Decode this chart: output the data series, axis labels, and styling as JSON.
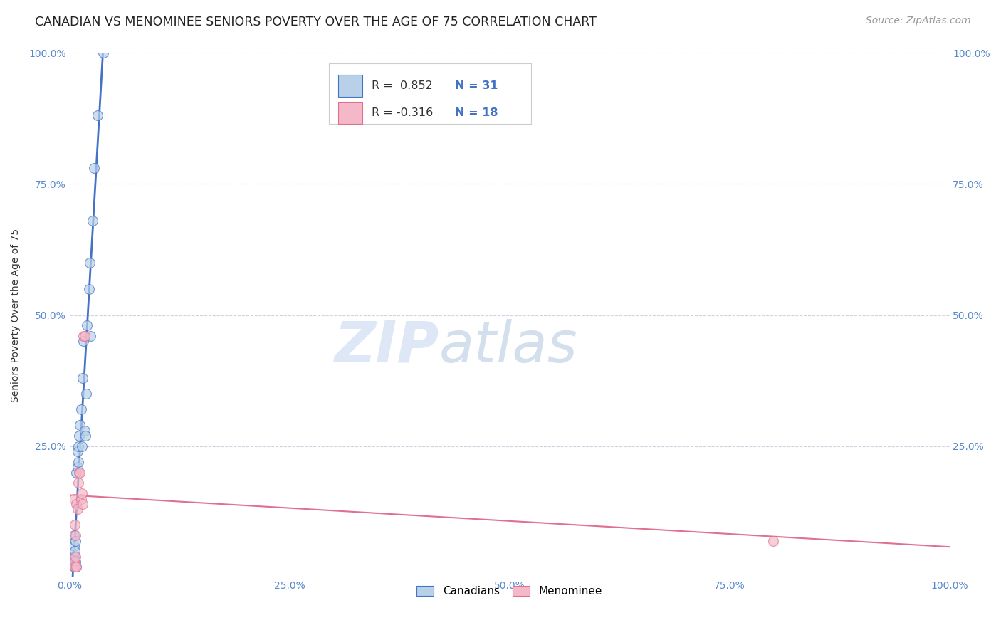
{
  "title": "CANADIAN VS MENOMINEE SENIORS POVERTY OVER THE AGE OF 75 CORRELATION CHART",
  "source": "Source: ZipAtlas.com",
  "ylabel": "Seniors Poverty Over the Age of 75",
  "watermark_zip": "ZIP",
  "watermark_atlas": "atlas",
  "canadians_x": [
    0.005,
    0.005,
    0.005,
    0.005,
    0.006,
    0.006,
    0.007,
    0.007,
    0.008,
    0.008,
    0.009,
    0.009,
    0.01,
    0.01,
    0.011,
    0.012,
    0.013,
    0.014,
    0.015,
    0.016,
    0.017,
    0.018,
    0.019,
    0.02,
    0.022,
    0.023,
    0.024,
    0.026,
    0.028,
    0.032,
    0.038
  ],
  "canadians_y": [
    0.02,
    0.04,
    0.06,
    0.08,
    0.02,
    0.05,
    0.03,
    0.07,
    0.02,
    0.2,
    0.21,
    0.24,
    0.22,
    0.25,
    0.27,
    0.29,
    0.32,
    0.25,
    0.38,
    0.45,
    0.28,
    0.27,
    0.35,
    0.48,
    0.55,
    0.6,
    0.46,
    0.68,
    0.78,
    0.88,
    1.0
  ],
  "menominee_x": [
    0.005,
    0.005,
    0.006,
    0.006,
    0.007,
    0.007,
    0.008,
    0.008,
    0.009,
    0.01,
    0.011,
    0.012,
    0.013,
    0.014,
    0.015,
    0.016,
    0.017,
    0.8
  ],
  "menominee_y": [
    0.03,
    0.15,
    0.02,
    0.1,
    0.04,
    0.08,
    0.02,
    0.14,
    0.13,
    0.18,
    0.2,
    0.2,
    0.15,
    0.16,
    0.14,
    0.46,
    0.46,
    0.07
  ],
  "canadian_color": "#b8d0e8",
  "menominee_color": "#f4b8c8",
  "canadian_line_color": "#4472c4",
  "menominee_line_color": "#e07090",
  "R_canadian": 0.852,
  "N_canadian": 31,
  "R_menominee": -0.316,
  "N_menominee": 18,
  "xlim": [
    0,
    1.0
  ],
  "ylim": [
    0,
    1.0
  ],
  "xticks": [
    0.0,
    0.25,
    0.5,
    0.75,
    1.0
  ],
  "yticks": [
    0.0,
    0.25,
    0.5,
    0.75,
    1.0
  ],
  "xtick_labels": [
    "0.0%",
    "25.0%",
    "50.0%",
    "75.0%",
    "100.0%"
  ],
  "ytick_labels": [
    "",
    "25.0%",
    "50.0%",
    "75.0%",
    "100.0%"
  ],
  "background_color": "#ffffff",
  "grid_color": "#ccccdd",
  "title_fontsize": 12.5,
  "axis_label_fontsize": 10,
  "tick_fontsize": 10,
  "source_fontsize": 10,
  "legend_fontsize": 11,
  "scatter_size": 100
}
